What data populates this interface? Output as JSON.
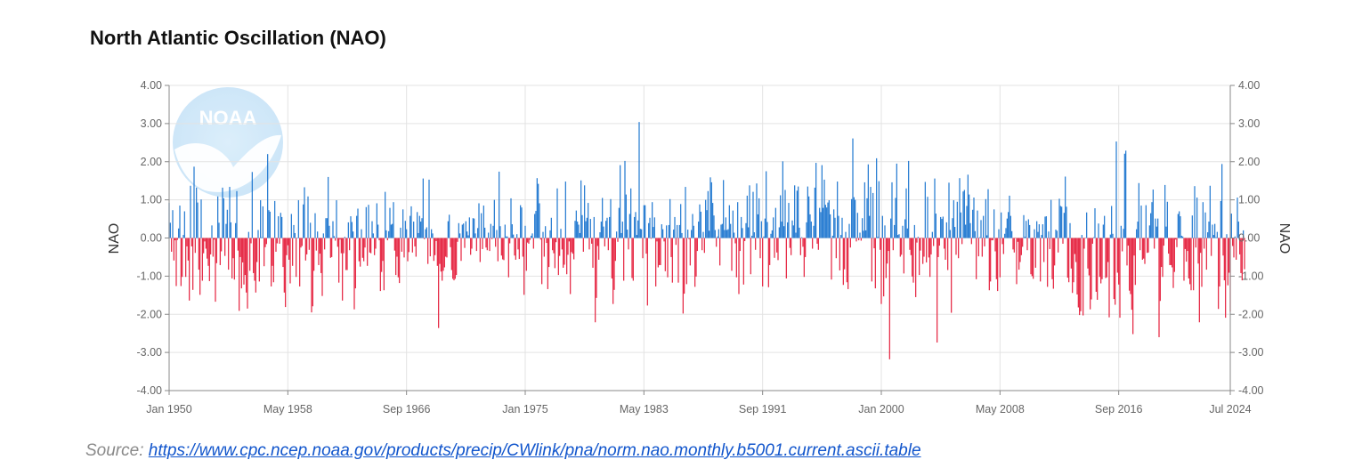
{
  "title": "North Atlantic Oscillation (NAO)",
  "source": {
    "label": "Source: ",
    "url_text": "https://www.cpc.ncep.noaa.gov/products/precip/CWlink/pna/norm.nao.monthly.b5001.current.ascii.table"
  },
  "logo_text": "NOAA",
  "colors": {
    "positive": "#1f77d0",
    "negative": "#e5203d",
    "grid": "#e3e3e3",
    "axis": "#888888"
  },
  "chart_data": {
    "type": "bar",
    "title": "North Atlantic Oscillation (NAO)",
    "ylabel": "NAO",
    "ylabel_right": "NAO",
    "ylim": [
      -4,
      4
    ],
    "y_ticks": [
      4,
      3,
      2,
      1,
      0,
      -1,
      -2,
      -3,
      -4
    ],
    "y_tick_labels": [
      "4.00",
      "3.00",
      "2.00",
      "1.00",
      "0.00",
      "-1.00",
      "-2.00",
      "-3.00",
      "-4.00"
    ],
    "x_range": [
      "1950-01",
      "2024-07"
    ],
    "x_ticks": [
      "1950-01",
      "1958-05",
      "1966-09",
      "1975-01",
      "1983-05",
      "1991-09",
      "2000-01",
      "2008-05",
      "2016-09",
      "2024-07"
    ],
    "x_tick_labels": [
      "Jan 1950",
      "May 1958",
      "Sep 1966",
      "Jan 1975",
      "May 1983",
      "Sep 1991",
      "Jan 2000",
      "May 2008",
      "Sep 2016",
      "Jul 2024"
    ],
    "frequency": "monthly",
    "start": "1950-01",
    "values_by_year": [
      [
        0.92,
        0.4,
        -0.36,
        0.73,
        -0.59,
        -0.06,
        -1.26,
        -0.05,
        0.25,
        0.85,
        -1.26,
        -1.02
      ],
      [
        0.08,
        0.7,
        -1.02,
        -0.22,
        -0.59,
        -1.64,
        1.37,
        -0.22,
        -1.36,
        1.87,
        -0.39,
        1.32
      ],
      [
        0.93,
        -0.83,
        -1.49,
        1.01,
        -1.12,
        -0.4,
        -0.09,
        -0.28,
        -0.54,
        -0.73,
        -1.13,
        -0.43
      ],
      [
        0.33,
        -0.49,
        -0.04,
        -1.67,
        -0.66,
        1.09,
        0.4,
        -0.71,
        -0.35,
        1.32,
        1.04,
        -0.47
      ],
      [
        0.37,
        0.74,
        -0.83,
        1.34,
        0.41,
        -1.06,
        -0.53,
        -1.09,
        0.39,
        1.23,
        -0.33,
        -1.91
      ],
      [
        -0.5,
        -1.32,
        -0.64,
        -1.22,
        -0.97,
        -1.43,
        -1.85,
        0.16,
        -0.86,
        -0.14,
        1.73,
        -0.92
      ],
      [
        -1.12,
        -1.43,
        -0.63,
        0.21,
        -1.14,
        0.99,
        0.02,
        0.83,
        -0.74,
        -0.24,
        -0.16,
        2.2
      ],
      [
        0.73,
        0.69,
        -1.27,
        -0.73,
        -1.16,
        0.97,
        -0.36,
        -0.14,
        0.57,
        -0.15,
        0.66,
        0.55
      ],
      [
        -0.76,
        -1.43,
        -1.81,
        -0.45,
        -0.19,
        -0.57,
        -1.19,
        0.63,
        -0.73,
        0.34,
        0.13,
        -1.02
      ],
      [
        0.01,
        0.99,
        -1.27,
        -0.25,
        -0.21,
        0.88,
        1.33,
        -0.59,
        -0.43,
        1.09,
        -0.31,
        0.4
      ],
      [
        -1.95,
        -1.79,
        -0.86,
        0.65,
        -0.33,
        0.17,
        -0.71,
        -0.41,
        -0.92,
        -1.52,
        0.12,
        -0.3
      ],
      [
        0.52,
        0.52,
        1.6,
        0.32,
        -0.52,
        -0.5,
        0.44,
        0.05,
        -0.07,
        0.99,
        -0.23,
        -1.17
      ],
      [
        -0.04,
        -0.4,
        -1.64,
        -0.4,
        0.03,
        -0.84,
        -0.84,
        0.41,
        -0.32,
        0.57,
        0.42,
        0.17
      ],
      [
        -1.87,
        -1.32,
        0.58,
        0.77,
        -0.61,
        -0.75,
        0.23,
        -0.52,
        -0.61,
        -0.25,
        0.81,
        -0.73
      ],
      [
        0.87,
        -0.38,
        -0.4,
        0.44,
        0.12,
        -0.45,
        -0.28,
        0.91,
        0.35,
        -0.06,
        -1.39,
        -0.89
      ],
      [
        -0.6,
        -1.37,
        1.21,
        0.2,
        -0.06,
        0.18,
        0.79,
        0.35,
        0.37,
        0.94,
        -0.33,
        -0.97
      ],
      [
        -0.49,
        -1.03,
        -1.18,
        0.27,
        -0.36,
        0.75,
        -0.51,
        0.45,
        0.23,
        -0.61,
        -0.37,
        0.58
      ],
      [
        0.83,
        -0.38,
        0.43,
        -0.22,
        -0.49,
        0.68,
        0.13,
        0.58,
        0.43,
        0.52,
        1.56,
        -0.03
      ],
      [
        0.23,
        0.28,
        -0.68,
        1.53,
        -0.48,
        0.23,
        0.12,
        -0.6,
        -0.45,
        -0.08,
        -0.73,
        -2.36
      ],
      [
        -0.68,
        -0.88,
        -1.12,
        -0.86,
        -0.77,
        -0.49,
        -0.51,
        0.44,
        0.61,
        -0.24,
        -0.84,
        -1.07
      ],
      [
        -1.11,
        -1.07,
        -0.97,
        -0.1,
        0.39,
        0.12,
        -0.6,
        0.35,
        0.38,
        -0.26,
        0.44,
        0.17
      ],
      [
        0.07,
        0.54,
        -0.44,
        -0.28,
        0.52,
        0.51,
        0.12,
        -0.34,
        0.26,
        0.91,
        -0.63,
        0.65
      ],
      [
        -0.29,
        0.85,
        0.27,
        -0.25,
        -0.32,
        0.14,
        -0.34,
        0.37,
        -0.03,
        0.32,
        1.0,
        -0.23
      ],
      [
        0.21,
        -0.61,
        1.74,
        0.31,
        -0.46,
        -0.56,
        -0.58,
        0.35,
        0.04,
        0.04,
        -1.03,
        -0.14
      ],
      [
        1.04,
        0.36,
        0.09,
        -0.46,
        -0.57,
        0.1,
        -0.3,
        -0.55,
        0.86,
        0.8,
        -0.49,
        -1.49
      ],
      [
        0.32,
        -0.86,
        -0.12,
        -0.15,
        -0.05,
        0.06,
        0.12,
        -0.28,
        0.63,
        0.71,
        1.57,
        1.42
      ],
      [
        0.91,
        -0.04,
        -1.21,
        0.16,
        -0.49,
        0.31,
        -0.13,
        -1.34,
        -0.76,
        0.2,
        0.53,
        -0.32
      ],
      [
        -0.4,
        -0.79,
        -0.11,
        1.3,
        -0.97,
        -0.47,
        0.24,
        -0.3,
        -0.78,
        -0.7,
        1.48,
        -0.95
      ],
      [
        -0.44,
        -0.09,
        -1.47,
        -0.37,
        -0.41,
        -0.56,
        0.45,
        0.72,
        0.43,
        0.35,
        0.13,
        1.51
      ],
      [
        0.6,
        -0.36,
        1.38,
        0.44,
        0.53,
        0.92,
        -0.3,
        0.5,
        -0.15,
        -0.78,
        0.55,
        -2.21
      ],
      [
        -1.57,
        -0.21,
        -0.57,
        0.15,
        0.43,
        1.05,
        0.3,
        -0.22,
        0.45,
        0.53,
        -0.32,
        0.55
      ],
      [
        1.02,
        -1.06,
        -1.73,
        -1.36,
        -0.6,
        0.17,
        -0.1,
        0.79,
        1.91,
        0.13,
        0.43,
        -1.12
      ],
      [
        2.02,
        1.14,
        0.22,
        -0.3,
        0.63,
        1.3,
        -1.05,
        -1.12,
        0.55,
        0.68,
        0.08,
        0.46
      ],
      [
        3.04,
        0.24,
        0.23,
        -0.53,
        0.86,
        0.86,
        -0.41,
        -1.77,
        0.39,
        0.53,
        -0.02,
        0.94
      ],
      [
        0.29,
        0.54,
        -1.27,
        -0.09,
        -0.77,
        -0.71,
        -0.71,
        0.36,
        0.23,
        -0.09,
        -0.87,
        0.33
      ],
      [
        -1.03,
        0.34,
        1.02,
        -0.5,
        -1.17,
        0.22,
        0.55,
        -0.18,
        0.34,
        -1.17,
        0.34,
        0.89
      ],
      [
        0.13,
        -1.98,
        -1.46,
        1.34,
        -1.21,
        0.22,
        -0.03,
        -0.72,
        0.21,
        0.63,
        0.32,
        -1.28
      ],
      [
        -1.01,
        -0.34,
        0.43,
        0.88,
        0.69,
        -0.32,
        0.16,
        -0.39,
        1.0,
        0.73,
        1.23,
        0.19
      ],
      [
        1.59,
        1.46,
        0.92,
        0.59,
        0.21,
        -0.23,
        0.04,
        0.23,
        -0.72,
        0.35,
        0.37,
        1.52
      ],
      [
        0.21,
        0.54,
        0.21,
        0.23,
        0.86,
        0.37,
        -0.86,
        0.72,
        0.14,
        -0.14,
        -1.03,
        0.94
      ],
      [
        -1.47,
        -0.34,
        0.55,
        0.26,
        -1.22,
        -0.08,
        0.39,
        1.11,
        0.28,
        1.38,
        -0.95,
        0.06
      ],
      [
        1.21,
        0.15,
        -0.31,
        1.43,
        0.62,
        1.04,
        -0.53,
        0.44,
        -1.27,
        0.04,
        0.51,
        1.75
      ],
      [
        0.42,
        -1.29,
        -0.71,
        0.11,
        0.2,
        0.54,
        -0.52,
        0.79,
        -0.38,
        -0.58,
        0.28,
        1.12
      ],
      [
        0.43,
        2.01,
        0.31,
        1.26,
        -1.06,
        0.41,
        0.92,
        -0.26,
        -0.45,
        0.46,
        0.33,
        1.38
      ],
      [
        0.14,
        1.24,
        1.35,
        0.27,
        -0.45,
        0.02,
        -0.23,
        -1.02,
        -0.5,
        0.41,
        1.35,
        1.09
      ],
      [
        0.62,
        0.43,
        -0.28,
        0.32,
        1.32,
        1.97,
        -0.15,
        -0.31,
        0.79,
        0.68,
        1.91,
        0.79
      ],
      [
        1.53,
        0.87,
        0.8,
        0.93,
        0.99,
        0.62,
        -1.09,
        0.06,
        0.75,
        0.53,
        -0.53,
        1.48
      ],
      [
        0.58,
        -0.85,
        0.08,
        0.53,
        -1.23,
        -0.82,
        0.16,
        -1.16,
        -1.34,
        0.37,
        -0.25,
        1.02
      ],
      [
        2.61,
        1.07,
        1.0,
        -0.09,
        0.66,
        -0.06,
        0.14,
        -0.07,
        0.52,
        0.19,
        1.46,
        0.2
      ],
      [
        1.04,
        1.93,
        0.58,
        1.34,
        -1.14,
        1.18,
        -0.27,
        -1.32,
        2.09,
        0.03,
        1.49,
        -0.31
      ],
      [
        -1.73,
        0.58,
        -1.53,
        0.33,
        -1.05,
        -0.67,
        -0.34,
        -3.18,
        0.51,
        1.46,
        -0.32,
        0.34
      ],
      [
        1.05,
        1.95,
        0.08,
        0.1,
        -0.49,
        -0.44,
        0.32,
        -0.93,
        0.49,
        1.3,
        0.25,
        2.02
      ],
      [
        -0.31,
        -0.45,
        -1.01,
        -1.17,
        0.34,
        -1.55,
        -0.12,
        0.03,
        -0.97,
        -0.33,
        -0.01,
        -0.68
      ],
      [
        -0.49,
        1.47,
        -0.64,
        1.08,
        -0.51,
        -1.02,
        -0.43,
        0.16,
        -0.21,
        1.56,
        0.64,
        -2.74
      ],
      [
        -0.5,
        -0.2,
        0.55,
        0.5,
        0.56,
        -0.28,
        -0.57,
        0.41,
        -0.84,
        1.45,
        0.21,
        -1.96
      ],
      [
        0.52,
        0.99,
        0.29,
        -0.44,
        0.95,
        -0.53,
        1.57,
        0.67,
        -0.16,
        1.22,
        1.26,
        0.35
      ],
      [
        0.84,
        1.66,
        1.14,
        0.39,
        -0.16,
        0.74,
        1.06,
        0.18,
        -1.08,
        0.72,
        -0.48,
        0.02
      ],
      [
        0.47,
        -0.49,
        0.58,
        -0.22,
        1.02,
        0.07,
        1.28,
        -1.37,
        -1.14,
        -0.06,
        -0.06,
        0.75
      ],
      [
        -0.35,
        -1.08,
        -1.39,
        0.23,
        -1.03,
        0.67,
        -0.16,
        -0.42,
        0.11,
        0.26,
        0.51,
        0.68
      ],
      [
        1.11,
        0.58,
        0.18,
        -0.3,
        -0.38,
        -0.01,
        -1.21,
        -0.1,
        -0.83,
        -0.63,
        -0.45,
        -0.23
      ],
      [
        0.6,
        0.03,
        0.45,
        -0.32,
        0.49,
        0.34,
        -0.95,
        -1.0,
        -1.07,
        0.23,
        -0.78,
        0.44
      ],
      [
        0.16,
        0.36,
        -1.14,
        0.08,
        0.36,
        -0.63,
        0.56,
        0.57,
        -1.28,
        0.17,
        -0.29,
        1.0
      ],
      [
        -1.08,
        -1.33,
        -0.72,
        0.22,
        0.19,
        -0.38,
        1.03,
        0.84,
        0.82,
        -0.15,
        0.66,
        1.61
      ],
      [
        0.82,
        -1.04,
        -1.16,
        0.39,
        -0.8,
        -1.44,
        -1.16,
        -0.42,
        -0.63,
        -1.48,
        -1.82,
        -2.02
      ],
      [
        -1.92,
        0.08,
        -2.03,
        -0.28,
        -0.01,
        0.67,
        -0.8,
        -0.98,
        -1.87,
        -1.61,
        -0.15,
        0.02
      ],
      [
        0.78,
        -1.41,
        -1.62,
        0.38,
        -1.02,
        -1.19,
        -1.08,
        0.35,
        0.58,
        -1.05,
        -1.03,
        -0.63
      ],
      [
        -2.08,
        0.09,
        0.84,
        0.11,
        -1.6,
        -1.75,
        2.53,
        -0.91,
        -1.22,
        -2.09,
        0.32,
        -0.35
      ],
      [
        0.24,
        2.21,
        2.29,
        -0.72,
        -0.2,
        -1.38,
        -1.47,
        -1.88,
        -2.52,
        -0.46,
        -1.23,
        0.23
      ],
      [
        0.43,
        1.44,
        -0.32,
        0.85,
        -0.57,
        -0.54,
        -0.68,
        0.86,
        -0.39,
        -0.38,
        0.33,
        0.65
      ],
      [
        0.94,
        1.27,
        -0.28,
        0.51,
        0.3,
        0.51,
        -2.6,
        -1.65,
        -0.76,
        -1.02,
        -0.2,
        1.39
      ],
      [
        0.3,
        0.95,
        -0.41,
        -0.71,
        -0.71,
        -0.77,
        -1.31,
        -0.89,
        -0.04,
        -0.24,
        0.63,
        0.7
      ],
      [
        0.57,
        0.06,
        0.04,
        -1.12,
        -0.29,
        -0.62,
        -0.34,
        -1.06,
        -1.21,
        -1.37,
        0.59,
        -1.37
      ],
      [
        1.36,
        -0.25,
        1.06,
        -0.67,
        -2.21,
        -0.39,
        -1.28,
        0.94,
        -0.28,
        0.67,
        -0.83,
        0.15
      ],
      [
        0.43,
        1.37,
        -0.47,
        0.35,
        0.08,
        0.37,
        0.02,
        0.16,
        -1.86,
        -1.27,
        0.97,
        1.94
      ],
      [
        -0.46,
        -1.11,
        -2.09,
        0.1,
        -1.24,
        -0.91,
        -1.93,
        0.64,
        -0.21,
        -0.51,
        0.04,
        -0.57
      ],
      [
        1.06,
        0.43,
        -0.43,
        -0.92,
        -1.11,
        0.2,
        -0.82
      ]
    ]
  }
}
